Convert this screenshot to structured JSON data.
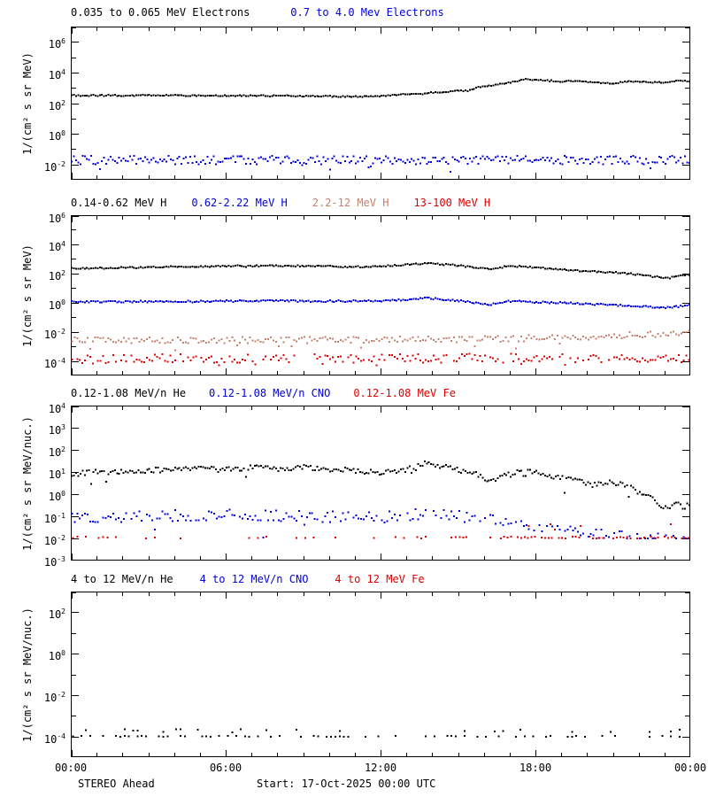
{
  "colors": {
    "black": "#000000",
    "blue": "#0000dd",
    "tan": "#c6816c",
    "red": "#dd0000"
  },
  "x_axis": {
    "hours": 24,
    "major_every_h": 6,
    "minor_every_h": 1,
    "ticks": [
      "00:00",
      "06:00",
      "12:00",
      "18:00",
      "00:00"
    ]
  },
  "footer": {
    "left": "STEREO Ahead",
    "center": "Start: 17-Oct-2025 00:00 UTC"
  },
  "chart_data": [
    {
      "type": "scatter",
      "title_segments": [
        {
          "text": "0.035 to 0.065 MeV Electrons",
          "color_key": "black"
        },
        {
          "text": "0.7 to 4.0 Mev Electrons",
          "color_key": "blue"
        }
      ],
      "ylabel": "1/(cm² s sr MeV)",
      "ylog_range": [
        -3,
        7
      ],
      "ytick_exps_labeled": [
        -2,
        0,
        2,
        4,
        6
      ],
      "series": [
        {
          "name": "electrons-0.035-0.065-MeV",
          "color_key": "black",
          "cadence_min": 5,
          "noise_dec": 0.04,
          "trend": [
            [
              0,
              2.5
            ],
            [
              4,
              2.5
            ],
            [
              8,
              2.48
            ],
            [
              10,
              2.44
            ],
            [
              11,
              2.42
            ],
            [
              12,
              2.46
            ],
            [
              12.5,
              2.55
            ],
            [
              13,
              2.6
            ],
            [
              13.5,
              2.58
            ],
            [
              14,
              2.68
            ],
            [
              14.6,
              2.75
            ],
            [
              15,
              2.85
            ],
            [
              15.4,
              2.8
            ],
            [
              15.8,
              3.05
            ],
            [
              16.3,
              3.15
            ],
            [
              17,
              3.35
            ],
            [
              17.6,
              3.55
            ],
            [
              18.2,
              3.5
            ],
            [
              19,
              3.42
            ],
            [
              19.6,
              3.45
            ],
            [
              20.3,
              3.35
            ],
            [
              21,
              3.3
            ],
            [
              21.6,
              3.42
            ],
            [
              22.3,
              3.38
            ],
            [
              23,
              3.35
            ],
            [
              23.5,
              3.5
            ],
            [
              24,
              3.42
            ]
          ]
        },
        {
          "name": "electrons-0.7-4.0-MeV",
          "color_key": "blue",
          "cadence_min": 5,
          "noise_dec": 0.28,
          "drop_prob": 0.05,
          "drop_amount": 0.6,
          "trend": [
            [
              0,
              -1.72
            ],
            [
              24,
              -1.72
            ]
          ]
        }
      ]
    },
    {
      "type": "scatter",
      "title_segments": [
        {
          "text": "0.14-0.62 MeV H",
          "color_key": "black"
        },
        {
          "text": "0.62-2.22 MeV H",
          "color_key": "blue"
        },
        {
          "text": "2.2-12 MeV H",
          "color_key": "tan"
        },
        {
          "text": "13-100 MeV H",
          "color_key": "red"
        }
      ],
      "ylabel": "1/(cm² s sr MeV)",
      "ylog_range": [
        -5,
        6
      ],
      "ytick_exps_labeled": [
        -4,
        -2,
        0,
        2,
        4,
        6
      ],
      "series": [
        {
          "name": "H-0.14-0.62-MeV",
          "color_key": "black",
          "cadence_min": 5,
          "noise_dec": 0.05,
          "trend": [
            [
              0,
              2.35
            ],
            [
              2,
              2.4
            ],
            [
              4,
              2.45
            ],
            [
              6,
              2.5
            ],
            [
              8,
              2.52
            ],
            [
              10,
              2.5
            ],
            [
              11,
              2.44
            ],
            [
              12,
              2.5
            ],
            [
              13,
              2.6
            ],
            [
              13.8,
              2.72
            ],
            [
              14.5,
              2.62
            ],
            [
              15.3,
              2.5
            ],
            [
              16.2,
              2.3
            ],
            [
              17,
              2.5
            ],
            [
              17.8,
              2.45
            ],
            [
              18.5,
              2.35
            ],
            [
              19.5,
              2.2
            ],
            [
              20.5,
              2.12
            ],
            [
              21.5,
              2.02
            ],
            [
              22.3,
              1.85
            ],
            [
              22.8,
              1.72
            ],
            [
              23.2,
              1.68
            ],
            [
              23.6,
              1.85
            ],
            [
              24,
              1.9
            ]
          ]
        },
        {
          "name": "H-0.62-2.22-MeV",
          "color_key": "blue",
          "cadence_min": 5,
          "noise_dec": 0.06,
          "trend": [
            [
              0,
              0.05
            ],
            [
              4,
              0.08
            ],
            [
              8,
              0.12
            ],
            [
              10,
              0.1
            ],
            [
              12,
              0.12
            ],
            [
              13,
              0.22
            ],
            [
              13.8,
              0.32
            ],
            [
              14.5,
              0.2
            ],
            [
              15.3,
              0.08
            ],
            [
              16.2,
              -0.15
            ],
            [
              17,
              0.08
            ],
            [
              18,
              0.05
            ],
            [
              19,
              -0.02
            ],
            [
              20,
              -0.08
            ],
            [
              21,
              -0.15
            ],
            [
              22,
              -0.25
            ],
            [
              22.8,
              -0.35
            ],
            [
              23.4,
              -0.3
            ],
            [
              24,
              -0.12
            ]
          ]
        },
        {
          "name": "H-2.2-12-MeV",
          "color_key": "tan",
          "cadence_min": 6,
          "noise_dec": 0.22,
          "drop_prob": 0.06,
          "drop_amount": 0.6,
          "trend": [
            [
              0,
              -2.6
            ],
            [
              12,
              -2.55
            ],
            [
              16,
              -2.5
            ],
            [
              19,
              -2.4
            ],
            [
              21,
              -2.3
            ],
            [
              23,
              -2.15
            ],
            [
              24,
              -2.05
            ]
          ]
        },
        {
          "name": "H-13-100-MeV",
          "color_key": "red",
          "cadence_min": 6,
          "noise_dec": 0.3,
          "gap_prob": 0.25,
          "drop_prob": 0.12,
          "drop_amount": 0.35,
          "trend": [
            [
              0,
              -3.85
            ],
            [
              24,
              -3.8
            ]
          ]
        }
      ]
    },
    {
      "type": "scatter",
      "title_segments": [
        {
          "text": "0.12-1.08 MeV/n He",
          "color_key": "black"
        },
        {
          "text": "0.12-1.08 MeV/n CNO",
          "color_key": "blue"
        },
        {
          "text": "0.12-1.08 MeV Fe",
          "color_key": "red"
        }
      ],
      "ylabel": "1/(cm² s sr MeV/nuc.)",
      "ylog_range": [
        -3,
        4
      ],
      "ytick_exps_labeled": [
        -3,
        -2,
        -1,
        0,
        1,
        2,
        3,
        4
      ],
      "series": [
        {
          "name": "He-0.12-1.08-MeVn",
          "color_key": "black",
          "cadence_min": 5,
          "noise_dec": 0.12,
          "drop_prob": 0.05,
          "drop_amount": 0.55,
          "trend": [
            [
              0,
              0.9
            ],
            [
              1,
              1.0
            ],
            [
              2,
              1.05
            ],
            [
              4,
              1.1
            ],
            [
              5,
              1.15
            ],
            [
              6,
              1.1
            ],
            [
              7,
              1.18
            ],
            [
              8,
              1.15
            ],
            [
              9,
              1.2
            ],
            [
              10,
              1.12
            ],
            [
              11,
              1.05
            ],
            [
              12,
              1.0
            ],
            [
              12.8,
              1.05
            ],
            [
              13.7,
              1.42
            ],
            [
              14.3,
              1.25
            ],
            [
              15,
              1.1
            ],
            [
              15.6,
              0.95
            ],
            [
              16.2,
              0.58
            ],
            [
              16.8,
              0.8
            ],
            [
              17.3,
              1.0
            ],
            [
              17.8,
              1.05
            ],
            [
              18.3,
              0.9
            ],
            [
              19,
              0.72
            ],
            [
              19.6,
              0.6
            ],
            [
              20.2,
              0.42
            ],
            [
              20.8,
              0.55
            ],
            [
              21.4,
              0.45
            ],
            [
              22,
              0.1
            ],
            [
              22.6,
              -0.25
            ],
            [
              23.1,
              -0.7
            ],
            [
              23.4,
              -0.35
            ],
            [
              23.7,
              -0.6
            ],
            [
              24,
              -0.5
            ]
          ]
        },
        {
          "name": "CNO-0.12-1.08-MeVn-early",
          "color_key": "blue",
          "cadence_min": 6,
          "noise_dec": 0.26,
          "gap_prob": 0.12,
          "drop_prob": 0.04,
          "drop_amount": 0.9,
          "clamp_min_exp": -2,
          "range": [
            0,
            16.5
          ],
          "trend": [
            [
              0,
              -1.1
            ],
            [
              3,
              -1.0
            ],
            [
              6,
              -0.95
            ],
            [
              9,
              -1.0
            ],
            [
              12,
              -1.05
            ],
            [
              13.8,
              -0.85
            ],
            [
              15,
              -1.0
            ],
            [
              16.5,
              -1.15
            ]
          ]
        },
        {
          "name": "CNO-0.12-1.08-MeVn-late",
          "color_key": "blue",
          "cadence_min": 6,
          "noise_dec": 0.22,
          "gap_prob": 0.4,
          "clamp_min_exp": -2,
          "range": [
            16.5,
            24
          ],
          "trend": [
            [
              16.5,
              -1.3
            ],
            [
              18,
              -1.45
            ],
            [
              19.5,
              -1.65
            ],
            [
              21,
              -1.85
            ],
            [
              22.5,
              -1.95
            ],
            [
              24,
              -1.95
            ]
          ]
        },
        {
          "name": "Fe-0.12-1.08-MeV-early",
          "color_key": "red",
          "cadence_min": 10,
          "noise_dec": 0.04,
          "gap_prob": 0.78,
          "range": [
            0,
            15
          ],
          "trend": [
            [
              0,
              -1.96
            ],
            [
              15,
              -1.96
            ]
          ]
        },
        {
          "name": "Fe-0.12-1.08-MeV-late",
          "color_key": "red",
          "cadence_min": 8,
          "noise_dec": 0.05,
          "gap_prob": 0.35,
          "range": [
            15,
            24
          ],
          "trend": [
            [
              15,
              -1.96
            ],
            [
              24,
              -1.96
            ]
          ]
        },
        {
          "name": "Fe-0.12-1.08-MeV-scatter",
          "color_key": "red",
          "cadence_min": 10,
          "noise_dec": 0.22,
          "gap_prob": 0.8,
          "range": [
            17,
            23.5
          ],
          "trend": [
            [
              17,
              -1.55
            ],
            [
              23.5,
              -1.55
            ]
          ]
        }
      ]
    },
    {
      "type": "scatter",
      "title_segments": [
        {
          "text": "4 to 12 MeV/n He",
          "color_key": "black"
        },
        {
          "text": "4 to 12 MeV/n CNO",
          "color_key": "blue"
        },
        {
          "text": "4 to 12 MeV Fe",
          "color_key": "red"
        }
      ],
      "ylabel": "1/(cm² s sr MeV/nuc.)",
      "ylog_range": [
        -5,
        3
      ],
      "ytick_exps_labeled": [
        -4,
        -2,
        0,
        2
      ],
      "series": [
        {
          "name": "He-4-12-MeVn-floor",
          "color_key": "black",
          "cadence_min": 10,
          "noise_dec": 0.03,
          "gap_prob": 0.5,
          "trend": [
            [
              0,
              -4.0
            ],
            [
              24,
              -4.0
            ]
          ]
        },
        {
          "name": "He-4-12-MeVn-upper",
          "color_key": "black",
          "cadence_min": 10,
          "noise_dec": 0.08,
          "gap_prob": 0.78,
          "trend": [
            [
              0,
              -3.72
            ],
            [
              24,
              -3.72
            ]
          ]
        },
        {
          "name": "He-4-12-MeVn-outliers",
          "color_key": "black",
          "cadence_min": 10,
          "noise_dec": 0.1,
          "gap_prob": 0.9,
          "range": [
            22.5,
            24
          ],
          "trend": [
            [
              22.5,
              -3.5
            ],
            [
              24,
              -3.5
            ]
          ]
        }
      ]
    }
  ]
}
